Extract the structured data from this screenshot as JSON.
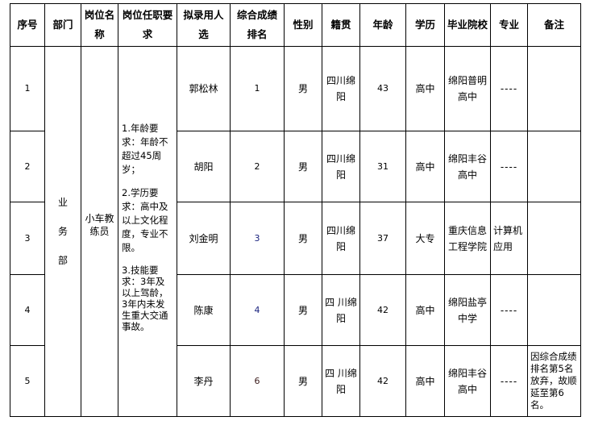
{
  "headers": [
    "序号",
    "部门",
    "岗位名称",
    "岗位任职要求",
    "拟录用人选",
    "综合成绩排名",
    "性别",
    "籍贯",
    "年龄",
    "学历",
    "毕业院校",
    "专业",
    "备注"
  ],
  "department": "业务部",
  "position": "小车教练员",
  "requirements": [
    "1.年龄要求：年龄不超过45周岁；",
    "2.学历要求：高中及以上文化程度，专业不限。",
    "3.技能要求：3年及以上驾龄，3年内未发生重大交通事故。"
  ],
  "rows": [
    {
      "no": "1",
      "name": "郭松林",
      "rank": "1",
      "gender": "男",
      "origin": "四川绵阳",
      "age": "43",
      "edu": "高中",
      "school": "绵阳普明高中",
      "major": "----",
      "note": ""
    },
    {
      "no": "2",
      "name": "胡阳",
      "rank": "2",
      "gender": "男",
      "origin": "四川绵阳",
      "age": "31",
      "edu": "高中",
      "school": "绵阳丰谷高中",
      "major": "----",
      "note": ""
    },
    {
      "no": "3",
      "name": "刘金明",
      "rank": "3",
      "gender": "男",
      "origin": "四川绵阳",
      "age": "37",
      "edu": "大专",
      "school": "重庆信息工程学院",
      "major": "计算机应用",
      "note": ""
    },
    {
      "no": "4",
      "name": "陈康",
      "rank": "4",
      "gender": "男",
      "origin": "四 川绵阳",
      "age": "42",
      "edu": "高中",
      "school": "绵阳盐亭中学",
      "major": "----",
      "note": ""
    },
    {
      "no": "5",
      "name": "李丹",
      "rank": "6",
      "gender": "男",
      "origin": "四 川绵阳",
      "age": "42",
      "edu": "高中",
      "school": "绵阳丰谷高中",
      "major": "----",
      "note": "因综合成绩排名第5名放弃，故顺延至第6名。"
    }
  ]
}
